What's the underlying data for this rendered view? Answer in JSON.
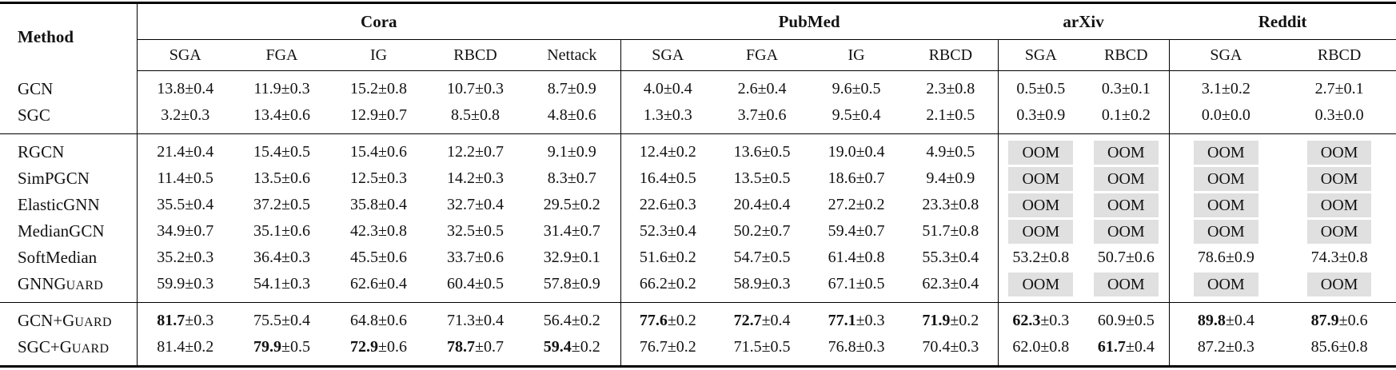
{
  "table": {
    "method_header": "Method",
    "oom_label": "OOM",
    "colors": {
      "oom_bg": "#e0e0e0",
      "text": "#121212",
      "rule": "#000000"
    },
    "groups": [
      {
        "name": "Cora",
        "attacks": [
          "SGA",
          "FGA",
          "IG",
          "RBCD",
          "Nettack"
        ]
      },
      {
        "name": "PubMed",
        "attacks": [
          "SGA",
          "FGA",
          "IG",
          "RBCD"
        ]
      },
      {
        "name": "arXiv",
        "attacks": [
          "SGA",
          "RBCD"
        ]
      },
      {
        "name": "Reddit",
        "attacks": [
          "SGA",
          "RBCD"
        ]
      }
    ],
    "sections": [
      {
        "rows": [
          {
            "method": "GCN",
            "method_sc": "",
            "cells": [
              {
                "v": "13.8",
                "s": "0.4"
              },
              {
                "v": "11.9",
                "s": "0.3"
              },
              {
                "v": "15.2",
                "s": "0.8"
              },
              {
                "v": "10.7",
                "s": "0.3"
              },
              {
                "v": "8.7",
                "s": "0.9"
              },
              {
                "v": "4.0",
                "s": "0.4"
              },
              {
                "v": "2.6",
                "s": "0.4"
              },
              {
                "v": "9.6",
                "s": "0.5"
              },
              {
                "v": "2.3",
                "s": "0.8"
              },
              {
                "v": "0.5",
                "s": "0.5"
              },
              {
                "v": "0.3",
                "s": "0.1"
              },
              {
                "v": "3.1",
                "s": "0.2"
              },
              {
                "v": "2.7",
                "s": "0.1"
              }
            ]
          },
          {
            "method": "SGC",
            "method_sc": "",
            "cells": [
              {
                "v": "3.2",
                "s": "0.3"
              },
              {
                "v": "13.4",
                "s": "0.6"
              },
              {
                "v": "12.9",
                "s": "0.7"
              },
              {
                "v": "8.5",
                "s": "0.8"
              },
              {
                "v": "4.8",
                "s": "0.6"
              },
              {
                "v": "1.3",
                "s": "0.3"
              },
              {
                "v": "3.7",
                "s": "0.6"
              },
              {
                "v": "9.5",
                "s": "0.4"
              },
              {
                "v": "2.1",
                "s": "0.5"
              },
              {
                "v": "0.3",
                "s": "0.9"
              },
              {
                "v": "0.1",
                "s": "0.2"
              },
              {
                "v": "0.0",
                "s": "0.0"
              },
              {
                "v": "0.3",
                "s": "0.0"
              }
            ]
          }
        ]
      },
      {
        "rows": [
          {
            "method": "RGCN",
            "method_sc": "",
            "cells": [
              {
                "v": "21.4",
                "s": "0.4"
              },
              {
                "v": "15.4",
                "s": "0.5"
              },
              {
                "v": "15.4",
                "s": "0.6"
              },
              {
                "v": "12.2",
                "s": "0.7"
              },
              {
                "v": "9.1",
                "s": "0.9"
              },
              {
                "v": "12.4",
                "s": "0.2"
              },
              {
                "v": "13.6",
                "s": "0.5"
              },
              {
                "v": "19.0",
                "s": "0.4"
              },
              {
                "v": "4.9",
                "s": "0.5"
              },
              {
                "oom": true
              },
              {
                "oom": true
              },
              {
                "oom": true
              },
              {
                "oom": true
              }
            ]
          },
          {
            "method": "SimPGCN",
            "method_sc": "",
            "cells": [
              {
                "v": "11.4",
                "s": "0.5"
              },
              {
                "v": "13.5",
                "s": "0.6"
              },
              {
                "v": "12.5",
                "s": "0.3"
              },
              {
                "v": "14.2",
                "s": "0.3"
              },
              {
                "v": "8.3",
                "s": "0.7"
              },
              {
                "v": "16.4",
                "s": "0.5"
              },
              {
                "v": "13.5",
                "s": "0.5"
              },
              {
                "v": "18.6",
                "s": "0.7"
              },
              {
                "v": "9.4",
                "s": "0.9"
              },
              {
                "oom": true
              },
              {
                "oom": true
              },
              {
                "oom": true
              },
              {
                "oom": true
              }
            ]
          },
          {
            "method": "ElasticGNN",
            "method_sc": "",
            "cells": [
              {
                "v": "35.5",
                "s": "0.4"
              },
              {
                "v": "37.2",
                "s": "0.5"
              },
              {
                "v": "35.8",
                "s": "0.4"
              },
              {
                "v": "32.7",
                "s": "0.4"
              },
              {
                "v": "29.5",
                "s": "0.2"
              },
              {
                "v": "22.6",
                "s": "0.3"
              },
              {
                "v": "20.4",
                "s": "0.4"
              },
              {
                "v": "27.2",
                "s": "0.2"
              },
              {
                "v": "23.3",
                "s": "0.8"
              },
              {
                "oom": true
              },
              {
                "oom": true
              },
              {
                "oom": true
              },
              {
                "oom": true
              }
            ]
          },
          {
            "method": "MedianGCN",
            "method_sc": "",
            "cells": [
              {
                "v": "34.9",
                "s": "0.7"
              },
              {
                "v": "35.1",
                "s": "0.6"
              },
              {
                "v": "42.3",
                "s": "0.8"
              },
              {
                "v": "32.5",
                "s": "0.5"
              },
              {
                "v": "31.4",
                "s": "0.7"
              },
              {
                "v": "52.3",
                "s": "0.4"
              },
              {
                "v": "50.2",
                "s": "0.7"
              },
              {
                "v": "59.4",
                "s": "0.7"
              },
              {
                "v": "51.7",
                "s": "0.8"
              },
              {
                "oom": true
              },
              {
                "oom": true
              },
              {
                "oom": true
              },
              {
                "oom": true
              }
            ]
          },
          {
            "method": "SoftMedian",
            "method_sc": "",
            "cells": [
              {
                "v": "35.2",
                "s": "0.3"
              },
              {
                "v": "36.4",
                "s": "0.3"
              },
              {
                "v": "45.5",
                "s": "0.6"
              },
              {
                "v": "33.7",
                "s": "0.6"
              },
              {
                "v": "32.9",
                "s": "0.1"
              },
              {
                "v": "51.6",
                "s": "0.2"
              },
              {
                "v": "54.7",
                "s": "0.5"
              },
              {
                "v": "61.4",
                "s": "0.8"
              },
              {
                "v": "55.3",
                "s": "0.4"
              },
              {
                "v": "53.2",
                "s": "0.8"
              },
              {
                "v": "50.7",
                "s": "0.6"
              },
              {
                "v": "78.6",
                "s": "0.9"
              },
              {
                "v": "74.3",
                "s": "0.8"
              }
            ]
          },
          {
            "method": "GNNG",
            "method_sc": "UARD",
            "cells": [
              {
                "v": "59.9",
                "s": "0.3"
              },
              {
                "v": "54.1",
                "s": "0.3"
              },
              {
                "v": "62.6",
                "s": "0.4"
              },
              {
                "v": "60.4",
                "s": "0.5"
              },
              {
                "v": "57.8",
                "s": "0.9"
              },
              {
                "v": "66.2",
                "s": "0.2"
              },
              {
                "v": "58.9",
                "s": "0.3"
              },
              {
                "v": "67.1",
                "s": "0.5"
              },
              {
                "v": "62.3",
                "s": "0.4"
              },
              {
                "oom": true
              },
              {
                "oom": true
              },
              {
                "oom": true
              },
              {
                "oom": true
              }
            ]
          }
        ]
      },
      {
        "rows": [
          {
            "method": "GCN+G",
            "method_sc": "UARD",
            "cells": [
              {
                "v": "81.7",
                "s": "0.3",
                "b": true
              },
              {
                "v": "75.5",
                "s": "0.4"
              },
              {
                "v": "64.8",
                "s": "0.6"
              },
              {
                "v": "71.3",
                "s": "0.4"
              },
              {
                "v": "56.4",
                "s": "0.2"
              },
              {
                "v": "77.6",
                "s": "0.2",
                "b": true
              },
              {
                "v": "72.7",
                "s": "0.4",
                "b": true
              },
              {
                "v": "77.1",
                "s": "0.3",
                "b": true
              },
              {
                "v": "71.9",
                "s": "0.2",
                "b": true
              },
              {
                "v": "62.3",
                "s": "0.3",
                "b": true
              },
              {
                "v": "60.9",
                "s": "0.5"
              },
              {
                "v": "89.8",
                "s": "0.4",
                "b": true
              },
              {
                "v": "87.9",
                "s": "0.6",
                "b": true
              }
            ]
          },
          {
            "method": "SGC+G",
            "method_sc": "UARD",
            "cells": [
              {
                "v": "81.4",
                "s": "0.2"
              },
              {
                "v": "79.9",
                "s": "0.5",
                "b": true
              },
              {
                "v": "72.9",
                "s": "0.6",
                "b": true
              },
              {
                "v": "78.7",
                "s": "0.7",
                "b": true
              },
              {
                "v": "59.4",
                "s": "0.2",
                "b": true
              },
              {
                "v": "76.7",
                "s": "0.2"
              },
              {
                "v": "71.5",
                "s": "0.5"
              },
              {
                "v": "76.8",
                "s": "0.3"
              },
              {
                "v": "70.4",
                "s": "0.3"
              },
              {
                "v": "62.0",
                "s": "0.8"
              },
              {
                "v": "61.7",
                "s": "0.4",
                "b": true
              },
              {
                "v": "87.2",
                "s": "0.3"
              },
              {
                "v": "85.6",
                "s": "0.8"
              }
            ]
          }
        ]
      }
    ]
  }
}
